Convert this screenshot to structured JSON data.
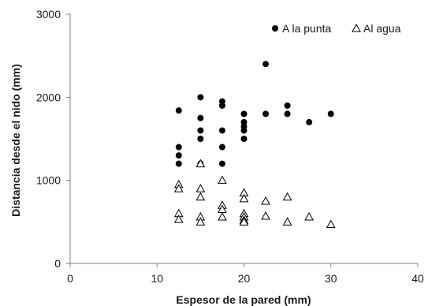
{
  "chart_data": {
    "type": "scatter",
    "xlabel": "Espesor de la pared (mm)",
    "ylabel": "Distancia desde el nido (mm)",
    "xlim": [
      0,
      40
    ],
    "ylim": [
      0,
      3000
    ],
    "xticks": [
      0,
      10,
      20,
      30,
      40
    ],
    "yticks": [
      0,
      1000,
      2000,
      3000
    ],
    "grid": false,
    "legend_position": "top-right",
    "series": [
      {
        "name": "A la punta",
        "marker": "filled-circle",
        "color": "#000000",
        "points": [
          [
            12.5,
            1840
          ],
          [
            12.5,
            1400
          ],
          [
            12.5,
            1300
          ],
          [
            12.5,
            1200
          ],
          [
            15,
            2000
          ],
          [
            15,
            1750
          ],
          [
            15,
            1600
          ],
          [
            15,
            1500
          ],
          [
            15,
            1200
          ],
          [
            17.5,
            1950
          ],
          [
            17.5,
            1900
          ],
          [
            17.5,
            1600
          ],
          [
            17.5,
            1400
          ],
          [
            17.5,
            1200
          ],
          [
            20,
            1800
          ],
          [
            20,
            1700
          ],
          [
            20,
            1650
          ],
          [
            20,
            1600
          ],
          [
            20,
            1500
          ],
          [
            22.5,
            2400
          ],
          [
            22.5,
            1800
          ],
          [
            25,
            1900
          ],
          [
            25,
            1800
          ],
          [
            27.5,
            1700
          ],
          [
            30,
            1800
          ]
        ]
      },
      {
        "name": "Al agua",
        "marker": "open-triangle",
        "color": "#000000",
        "points": [
          [
            12.5,
            950
          ],
          [
            12.5,
            900
          ],
          [
            12.5,
            600
          ],
          [
            12.5,
            530
          ],
          [
            15,
            1200
          ],
          [
            15,
            900
          ],
          [
            15,
            800
          ],
          [
            15,
            560
          ],
          [
            15,
            500
          ],
          [
            17.5,
            1000
          ],
          [
            17.5,
            700
          ],
          [
            17.5,
            650
          ],
          [
            17.5,
            560
          ],
          [
            20,
            850
          ],
          [
            20,
            780
          ],
          [
            20,
            600
          ],
          [
            20,
            560
          ],
          [
            20,
            520
          ],
          [
            20,
            500
          ],
          [
            22.5,
            750
          ],
          [
            22.5,
            570
          ],
          [
            25,
            800
          ],
          [
            25,
            500
          ],
          [
            27.5,
            560
          ],
          [
            30,
            470
          ]
        ]
      }
    ]
  }
}
